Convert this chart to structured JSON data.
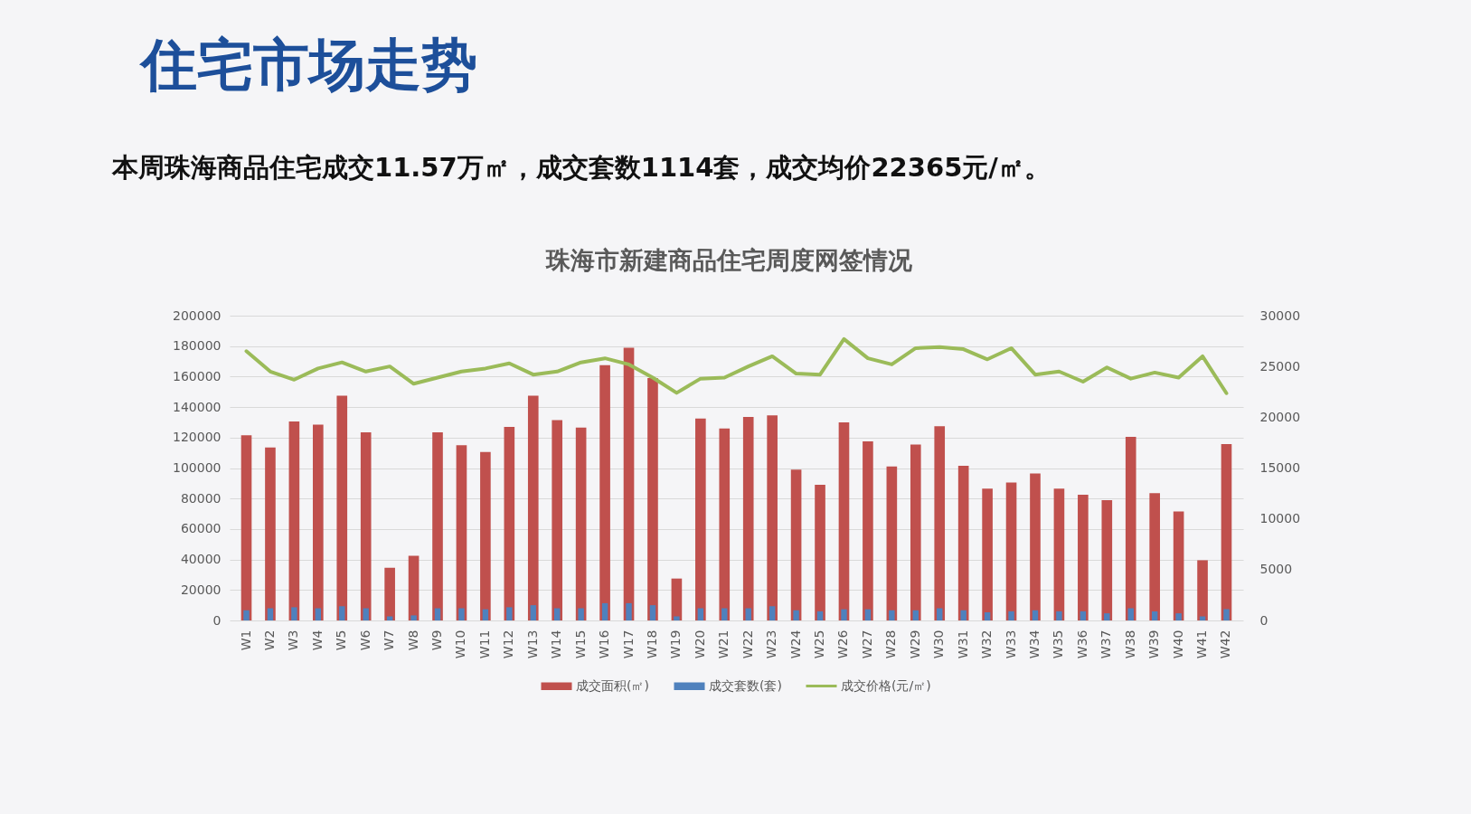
{
  "chart_data": {
    "type": "bar",
    "title": "住宅市场走势",
    "subtitle": "本周珠海商品住宅成交11.57万㎡，成交套数1114套，成交均价22365元/㎡。",
    "annotations": [
      "珠海市新建商品住宅周度网签情况"
    ],
    "categories": [
      "W1",
      "W2",
      "W3",
      "W4",
      "W5",
      "W6",
      "W7",
      "W8",
      "W9",
      "W10",
      "W11",
      "W12",
      "W13",
      "W14",
      "W15",
      "W16",
      "W17",
      "W18",
      "W19",
      "W20",
      "W21",
      "W22",
      "W23",
      "W24",
      "W25",
      "W26",
      "W27",
      "W28",
      "W29",
      "W30",
      "W31",
      "W32",
      "W33",
      "W34",
      "W35",
      "W36",
      "W37",
      "W38",
      "W39",
      "W40",
      "W41",
      "W42"
    ],
    "series": [
      {
        "name": "成交面积(㎡)",
        "color": "#c0504d",
        "values": [
          121500,
          113500,
          130500,
          128500,
          147500,
          123500,
          34500,
          42500,
          123500,
          115000,
          110500,
          127000,
          147500,
          131500,
          126500,
          167500,
          179000,
          159000,
          27500,
          132500,
          126000,
          133500,
          134500,
          99000,
          89000,
          130000,
          117500,
          101000,
          115500,
          127500,
          101500,
          86500,
          90500,
          96500,
          86500,
          82500,
          79000,
          120500,
          83500,
          71500,
          39500,
          115700
        ]
      },
      {
        "name": "成交套数(套)",
        "color": "#4f81bd",
        "axis": "y2",
        "values": [
          1000,
          1200,
          1300,
          1200,
          1400,
          1200,
          400,
          500,
          1200,
          1200,
          1100,
          1300,
          1500,
          1200,
          1200,
          1700,
          1700,
          1500,
          400,
          1200,
          1200,
          1200,
          1400,
          1000,
          900,
          1100,
          1100,
          1000,
          1000,
          1200,
          1000,
          800,
          900,
          1000,
          900,
          900,
          700,
          1200,
          900,
          700,
          400,
          1114
        ]
      },
      {
        "name": "成交价格(元/㎡)",
        "type": "line",
        "color": "#9bbb59",
        "axis": "y2",
        "values": [
          26500,
          24500,
          23700,
          24800,
          25400,
          24500,
          25000,
          23300,
          23900,
          24500,
          24800,
          25300,
          24200,
          24500,
          25400,
          25800,
          25200,
          23900,
          22400,
          23800,
          23900,
          25000,
          26000,
          24300,
          24200,
          27700,
          25800,
          25200,
          26800,
          26900,
          26700,
          25700,
          26800,
          24200,
          24500,
          23500,
          24900,
          23800,
          24400,
          23900,
          26000,
          22365
        ]
      }
    ],
    "ylim": [
      0,
      200000
    ],
    "yticks": [
      0,
      20000,
      40000,
      60000,
      80000,
      100000,
      120000,
      140000,
      160000,
      180000,
      200000
    ],
    "y2lim": [
      0,
      30000
    ],
    "y2ticks": [
      0,
      5000,
      10000,
      15000,
      20000,
      25000,
      30000
    ],
    "grid": "y",
    "legend": "bottom"
  }
}
